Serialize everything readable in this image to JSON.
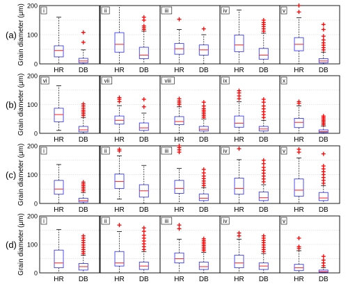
{
  "chart_data": {
    "type": "box",
    "ylabel": "Grain diameter (μm)",
    "ylim": [
      0,
      200
    ],
    "yticks": [
      0,
      100,
      200
    ],
    "categories": [
      "HR",
      "DB"
    ],
    "grid": true,
    "colors": {
      "box": "#3a3af0",
      "median": "#ff3030",
      "whisker": "#000000",
      "outlier": "#ff0000"
    },
    "rows": [
      {
        "label": "(a)",
        "panels": [
          {
            "label": "i",
            "HR": {
              "q1": 24,
              "median": 46,
              "q3": 62,
              "lo": 0,
              "hi": 160,
              "outliers": []
            },
            "DB": {
              "q1": 4,
              "median": 10,
              "q3": 19,
              "lo": 0,
              "hi": 48,
              "outliers": [
                74,
                108
              ]
            }
          },
          {
            "label": "ii",
            "HR": {
              "q1": 40,
              "median": 67,
              "q3": 107,
              "lo": 0,
              "hi": 200,
              "outliers": []
            },
            "DB": {
              "q1": 18,
              "median": 30,
              "q3": 57,
              "lo": 0,
              "hi": 112,
              "outliers": [
                118,
                124,
                130,
                150,
                160
              ]
            }
          },
          {
            "label": "iii",
            "HR": {
              "q1": 33,
              "median": 52,
              "q3": 70,
              "lo": 0,
              "hi": 118,
              "outliers": [
                153
              ]
            },
            "DB": {
              "q1": 30,
              "median": 48,
              "q3": 65,
              "lo": 0,
              "hi": 100,
              "outliers": [
                120
              ]
            }
          },
          {
            "label": "iv",
            "HR": {
              "q1": 42,
              "median": 65,
              "q3": 99,
              "lo": 0,
              "hi": 185,
              "outliers": []
            },
            "DB": {
              "q1": 16,
              "median": 30,
              "q3": 53,
              "lo": 0,
              "hi": 105,
              "outliers": [
                112,
                120,
                128,
                135,
                142,
                150
              ]
            }
          },
          {
            "label": "v",
            "HR": {
              "q1": 45,
              "median": 67,
              "q3": 90,
              "lo": 0,
              "hi": 158,
              "outliers": [
                178,
                200
              ]
            },
            "DB": {
              "q1": 4,
              "median": 10,
              "q3": 18,
              "lo": 0,
              "hi": 40,
              "outliers": [
                48,
                56,
                64,
                72,
                82,
                95,
                118,
                135
              ]
            }
          }
        ]
      },
      {
        "label": "(b)",
        "panels": [
          {
            "label": "vi",
            "HR": {
              "q1": 40,
              "median": 65,
              "q3": 87,
              "lo": 10,
              "hi": 165,
              "outliers": []
            },
            "DB": {
              "q1": 5,
              "median": 12,
              "q3": 24,
              "lo": 0,
              "hi": 55,
              "outliers": [
                62,
                68,
                74,
                80,
                87,
                95,
                102
              ]
            }
          },
          {
            "label": "vii",
            "HR": {
              "q1": 32,
              "median": 45,
              "q3": 60,
              "lo": 0,
              "hi": 96,
              "outliers": [
                110,
                118,
                124
              ]
            },
            "DB": {
              "q1": 10,
              "median": 19,
              "q3": 36,
              "lo": 0,
              "hi": 70,
              "outliers": [
                92,
                118
              ]
            }
          },
          {
            "label": "viii",
            "HR": {
              "q1": 30,
              "median": 41,
              "q3": 58,
              "lo": 0,
              "hi": 92,
              "outliers": [
                100,
                106,
                112,
                120
              ]
            },
            "DB": {
              "q1": 8,
              "median": 14,
              "q3": 24,
              "lo": 0,
              "hi": 50,
              "outliers": [
                56,
                62,
                68,
                74,
                80,
                86,
                95,
                108
              ]
            }
          },
          {
            "label": "ix",
            "HR": {
              "q1": 21,
              "median": 35,
              "q3": 60,
              "lo": 0,
              "hi": 110,
              "outliers": [
                120,
                130,
                140,
                148
              ]
            },
            "DB": {
              "q1": 8,
              "median": 15,
              "q3": 24,
              "lo": 0,
              "hi": 45,
              "outliers": [
                55,
                65,
                75,
                85,
                95,
                108,
                118
              ]
            }
          },
          {
            "label": "x",
            "HR": {
              "q1": 20,
              "median": 38,
              "q3": 52,
              "lo": 0,
              "hi": 95,
              "outliers": [
                104,
                110
              ]
            },
            "DB": {
              "q1": 3,
              "median": 6,
              "q3": 12,
              "lo": 0,
              "hi": 25,
              "outliers": [
                30,
                35,
                40,
                45,
                50,
                55,
                60
              ]
            }
          }
        ]
      },
      {
        "label": "(c)",
        "panels": [
          {
            "label": "i",
            "HR": {
              "q1": 32,
              "median": 50,
              "q3": 80,
              "lo": 0,
              "hi": 135,
              "outliers": []
            },
            "DB": {
              "q1": 5,
              "median": 10,
              "q3": 18,
              "lo": 0,
              "hi": 38,
              "outliers": [
                44,
                50,
                56,
                62,
                68,
                74
              ]
            }
          },
          {
            "label": "ii",
            "HR": {
              "q1": 52,
              "median": 76,
              "q3": 102,
              "lo": 15,
              "hi": 165,
              "outliers": [
                182,
                188
              ]
            },
            "DB": {
              "q1": 22,
              "median": 44,
              "q3": 65,
              "lo": 0,
              "hi": 132,
              "outliers": []
            }
          },
          {
            "label": "iii",
            "HR": {
              "q1": 35,
              "median": 52,
              "q3": 80,
              "lo": 0,
              "hi": 122,
              "outliers": [
                178,
                186,
                194,
                200
              ]
            },
            "DB": {
              "q1": 10,
              "median": 18,
              "q3": 33,
              "lo": 0,
              "hi": 55,
              "outliers": [
                62,
                70,
                78,
                86,
                95,
                106,
                118
              ]
            }
          },
          {
            "label": "iv",
            "HR": {
              "q1": 32,
              "median": 52,
              "q3": 88,
              "lo": 0,
              "hi": 152,
              "outliers": [
                190
              ]
            },
            "DB": {
              "q1": 10,
              "median": 20,
              "q3": 40,
              "lo": 0,
              "hi": 65,
              "outliers": [
                75,
                85,
                95,
                105,
                115,
                125,
                138,
                150
              ]
            }
          },
          {
            "label": "v",
            "HR": {
              "q1": 25,
              "median": 46,
              "q3": 85,
              "lo": 0,
              "hi": 158,
              "outliers": [
                178,
                188
              ]
            },
            "DB": {
              "q1": 10,
              "median": 19,
              "q3": 38,
              "lo": 0,
              "hi": 62,
              "outliers": [
                70,
                80,
                90,
                100,
                110,
                120,
                130,
                172
              ]
            }
          }
        ]
      },
      {
        "label": "(d)",
        "panels": [
          {
            "label": "i",
            "HR": {
              "q1": 18,
              "median": 35,
              "q3": 80,
              "lo": 0,
              "hi": 152,
              "outliers": []
            },
            "DB": {
              "q1": 10,
              "median": 22,
              "q3": 33,
              "lo": 0,
              "hi": 62,
              "outliers": [
                68,
                75,
                82,
                90,
                98,
                106,
                114,
                122,
                130
              ]
            }
          },
          {
            "label": "ii",
            "HR": {
              "q1": 24,
              "median": 35,
              "q3": 75,
              "lo": 0,
              "hi": 145,
              "outliers": [
                168
              ]
            },
            "DB": {
              "q1": 12,
              "median": 24,
              "q3": 38,
              "lo": 0,
              "hi": 75,
              "outliers": [
                82,
                92,
                102,
                112,
                122,
                132,
                146,
                158
              ]
            }
          },
          {
            "label": "iii",
            "HR": {
              "q1": 35,
              "median": 50,
              "q3": 70,
              "lo": 0,
              "hi": 118,
              "outliers": [
                155,
                168
              ]
            },
            "DB": {
              "q1": 12,
              "median": 22,
              "q3": 38,
              "lo": 0,
              "hi": 72,
              "outliers": [
                78,
                84,
                90,
                96,
                102,
                108,
                114,
                120
              ]
            }
          },
          {
            "label": "iv",
            "HR": {
              "q1": 18,
              "median": 35,
              "q3": 62,
              "lo": 0,
              "hi": 118,
              "outliers": [
                130,
                140
              ]
            },
            "DB": {
              "q1": 12,
              "median": 24,
              "q3": 35,
              "lo": 0,
              "hi": 68,
              "outliers": [
                75,
                82,
                90,
                98,
                106,
                114,
                122,
                130
              ]
            }
          },
          {
            "label": "v",
            "HR": {
              "q1": 8,
              "median": 18,
              "q3": 30,
              "lo": 0,
              "hi": 78,
              "outliers": [
                86,
                92,
                122
              ]
            },
            "DB": {
              "q1": 2,
              "median": 5,
              "q3": 10,
              "lo": 0,
              "hi": 18,
              "outliers": [
                25,
                35,
                45,
                58
              ]
            }
          }
        ]
      }
    ]
  }
}
